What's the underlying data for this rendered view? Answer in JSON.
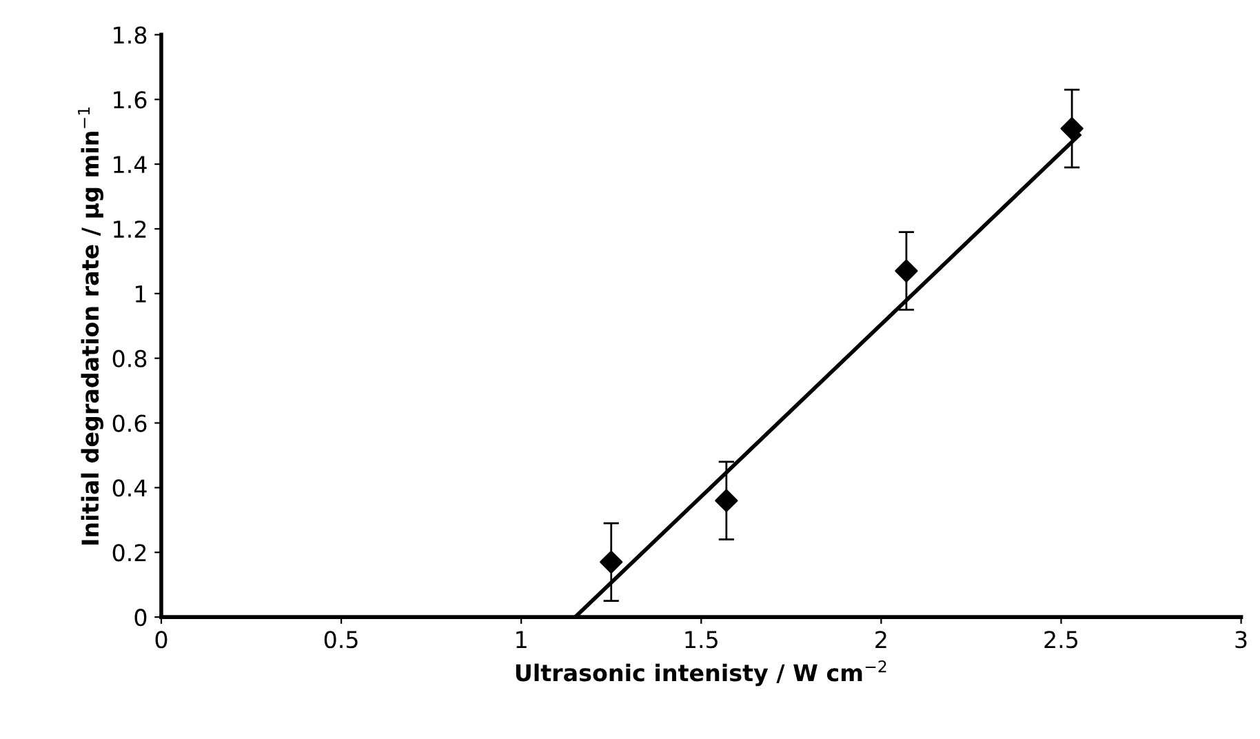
{
  "chart_data": {
    "type": "scatter",
    "xlabel": "Ultrasonic intenisty / W cm$^{−2}$",
    "ylabel": "Initial degradation rate / µg min$^{−1}$",
    "series": [
      {
        "color": "#000000",
        "marker": "diamond",
        "x": [
          1.25,
          1.57,
          2.07,
          2.53
        ],
        "values": [
          0.17,
          0.36,
          1.07,
          1.51
        ],
        "errors": [
          0.12,
          0.12,
          0.12,
          0.12
        ]
      },
      {
        "type": "line",
        "color": "#000000",
        "marker": "none",
        "line_style": "solid",
        "x": [
          1.15,
          2.55
        ],
        "values": [
          0,
          1.49
        ]
      }
    ],
    "xlim": [
      0,
      3
    ],
    "xticks": [
      0,
      0.5,
      1,
      1.5,
      2,
      2.5,
      3
    ],
    "ylim": [
      0,
      1.8
    ],
    "yticks": [
      0,
      0.2,
      0.4,
      0.6,
      0.8,
      1,
      1.2,
      1.4,
      1.6,
      1.8
    ],
    "grid": false,
    "legend": false
  }
}
